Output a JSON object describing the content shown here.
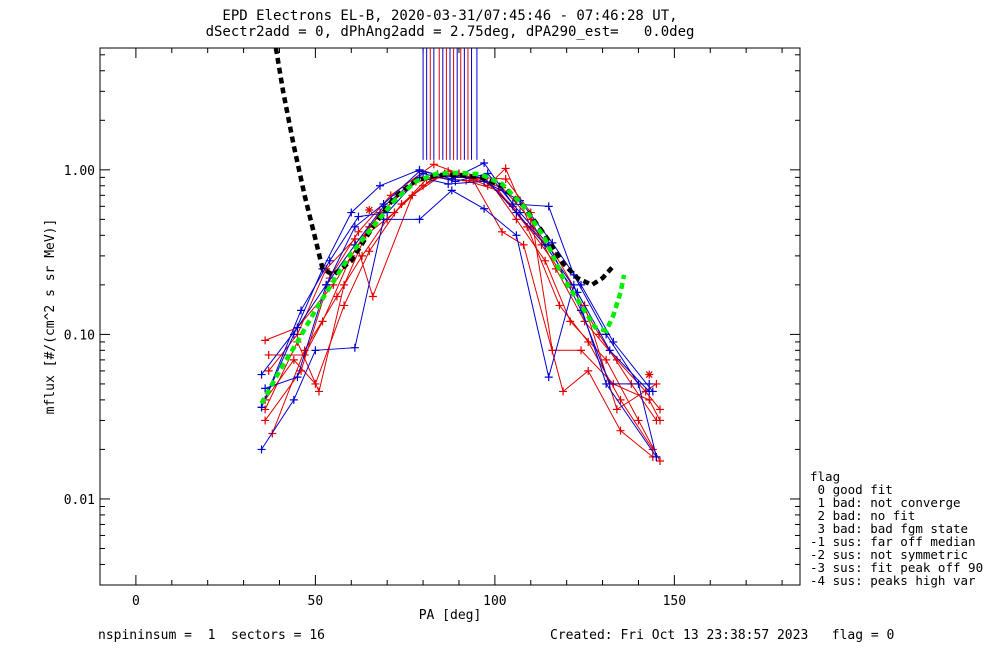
{
  "title_line1": "EPD Electrons EL-B, 2020-03-31/07:45:46 - 07:46:28 UT,",
  "title_line2": "dSectr2add = 0, dPhAng2add = 2.75deg, dPA290_est=   0.0deg",
  "footer_left": "nspininsum =  1  sectors = 16",
  "footer_right": "Created: Fri Oct 13 23:38:57 2023   flag = 0",
  "legend": {
    "title": "flag",
    "items": [
      " 0 good fit",
      " 1 bad: not converge",
      " 2 bad: no fit",
      " 3 bad: bad fgm state",
      "-1 sus: far off median",
      "-2 sus: not symmetric",
      "-3 sus: fit peak off 90",
      "-4 sus: peaks high var"
    ]
  },
  "colors": {
    "red": "#e00000",
    "blue": "#0000cc",
    "black": "#000000",
    "green": "#00ee00"
  },
  "chart_data": {
    "type": "line",
    "xlabel": "PA [deg]",
    "ylabel": "mflux [#/(cm^2 s sr MeV)]",
    "xlim": [
      -10,
      185
    ],
    "ylim": [
      0.003,
      5.5
    ],
    "y_log": true,
    "x_ticks": [
      0,
      50,
      100,
      150
    ],
    "x_tick_labels": [
      "0",
      "50",
      "100",
      "150"
    ],
    "y_ticks": [
      0.01,
      0.1,
      1.0
    ],
    "y_tick_labels": [
      "0.01",
      "0.10",
      "1.00"
    ],
    "series": [
      {
        "color": "red",
        "marker": "+",
        "points": [
          [
            36,
            0.092
          ],
          [
            45,
            0.11
          ],
          [
            55,
            0.2
          ],
          [
            65,
            0.45
          ],
          [
            75,
            0.78
          ],
          [
            84,
            0.94
          ],
          [
            93,
            0.9
          ],
          [
            102,
            0.78
          ],
          [
            110,
            0.5
          ],
          [
            117,
            0.25
          ],
          [
            125,
            0.12
          ],
          [
            134,
            0.07
          ],
          [
            142,
            0.045
          ],
          [
            146,
            0.035
          ]
        ]
      },
      {
        "color": "red",
        "marker": "+",
        "points": [
          [
            37,
            0.075
          ],
          [
            47,
            0.075
          ],
          [
            52,
            0.12
          ],
          [
            60,
            0.3
          ],
          [
            68,
            0.55
          ],
          [
            78,
            0.85
          ],
          [
            88,
            0.92
          ],
          [
            97,
            0.88
          ],
          [
            105,
            0.6
          ],
          [
            113,
            0.35
          ],
          [
            121,
            0.2
          ],
          [
            129,
            0.1
          ],
          [
            138,
            0.05
          ],
          [
            145,
            0.03
          ]
        ]
      },
      {
        "color": "red",
        "marker": "+",
        "points": [
          [
            36,
            0.04
          ],
          [
            44,
            0.07
          ],
          [
            50,
            0.05
          ],
          [
            58,
            0.15
          ],
          [
            65,
            0.32
          ],
          [
            74,
            0.62
          ],
          [
            83,
            0.9
          ],
          [
            92,
            0.86
          ],
          [
            101,
            0.75
          ],
          [
            109,
            0.45
          ],
          [
            118,
            0.15
          ],
          [
            126,
            0.09
          ],
          [
            135,
            0.04
          ],
          [
            144,
            0.02
          ]
        ]
      },
      {
        "color": "red",
        "marker": "+",
        "points": [
          [
            36,
            0.035
          ],
          [
            45,
            0.09
          ],
          [
            51,
            0.045
          ],
          [
            58,
            0.2
          ],
          [
            64,
            0.4
          ],
          [
            72,
            0.55
          ],
          [
            81,
            0.88
          ],
          [
            90,
            0.95
          ],
          [
            99,
            0.82
          ],
          [
            106,
            0.5
          ],
          [
            114,
            0.28
          ],
          [
            121,
            0.12
          ],
          [
            131,
            0.07
          ],
          [
            140,
            0.03
          ],
          [
            146,
            0.017
          ]
        ]
      },
      {
        "color": "red",
        "marker": "+",
        "points": [
          [
            37,
            0.06
          ],
          [
            45,
            0.1
          ],
          [
            53,
            0.25
          ],
          [
            61,
            0.38
          ],
          [
            66,
            0.17
          ],
          [
            77,
            0.7
          ],
          [
            86,
            0.95
          ],
          [
            95,
            0.9
          ],
          [
            103,
            0.88
          ],
          [
            110,
            0.55
          ],
          [
            116,
            0.08
          ],
          [
            124,
            0.08
          ],
          [
            133,
            0.05
          ],
          [
            143,
            0.04
          ],
          [
            146,
            0.03
          ]
        ]
      },
      {
        "color": "red",
        "marker": "+",
        "points": [
          [
            38,
            0.025
          ],
          [
            47,
            0.08
          ],
          [
            56,
            0.17
          ],
          [
            63,
            0.3
          ],
          [
            70,
            0.5
          ],
          [
            80,
            0.8
          ],
          [
            87,
            0.98
          ],
          [
            94,
            0.86
          ],
          [
            102,
            0.42
          ],
          [
            108,
            0.35
          ],
          [
            119,
            0.045
          ],
          [
            126,
            0.06
          ],
          [
            135,
            0.026
          ],
          [
            144,
            0.018
          ]
        ]
      },
      {
        "color": "red",
        "marker": "+",
        "points": [
          [
            36,
            0.03
          ],
          [
            46,
            0.06
          ],
          [
            54,
            0.22
          ],
          [
            62,
            0.42
          ],
          [
            71,
            0.7
          ],
          [
            83,
            1.08
          ],
          [
            90,
            0.95
          ],
          [
            98,
            0.8
          ],
          [
            103,
            1.02
          ],
          [
            110,
            0.45
          ],
          [
            117,
            0.3
          ],
          [
            125,
            0.15
          ],
          [
            134,
            0.035
          ],
          [
            145,
            0.05
          ]
        ]
      },
      {
        "color": "blue",
        "marker": "+",
        "points": [
          [
            35,
            0.036
          ],
          [
            44,
            0.1
          ],
          [
            52,
            0.25
          ],
          [
            60,
            0.55
          ],
          [
            68,
            0.8
          ],
          [
            79,
            1.0
          ],
          [
            88,
            0.88
          ],
          [
            97,
            1.1
          ],
          [
            105,
            0.62
          ],
          [
            115,
            0.6
          ],
          [
            122,
            0.23
          ],
          [
            131,
            0.1
          ],
          [
            140,
            0.05
          ],
          [
            145,
            0.018
          ]
        ]
      },
      {
        "color": "blue",
        "marker": "+",
        "points": [
          [
            35,
            0.057
          ],
          [
            45,
            0.11
          ],
          [
            53,
            0.2
          ],
          [
            61,
            0.45
          ],
          [
            69,
            0.62
          ],
          [
            79,
            0.98
          ],
          [
            89,
            0.9
          ],
          [
            97,
            0.9
          ],
          [
            106,
            0.55
          ],
          [
            114,
            0.35
          ],
          [
            123,
            0.18
          ],
          [
            132,
            0.08
          ],
          [
            143,
            0.045
          ]
        ]
      },
      {
        "color": "blue",
        "marker": "+",
        "points": [
          [
            35,
            0.02
          ],
          [
            44,
            0.04
          ],
          [
            50,
            0.08
          ],
          [
            61,
            0.083
          ],
          [
            69,
            0.5
          ],
          [
            79,
            0.5
          ],
          [
            88,
            0.75
          ],
          [
            97,
            0.58
          ],
          [
            106,
            0.4
          ],
          [
            115,
            0.055
          ],
          [
            122,
            0.2
          ],
          [
            131,
            0.05
          ],
          [
            145,
            0.018
          ]
        ]
      },
      {
        "color": "blue",
        "marker": "+",
        "points": [
          [
            36,
            0.047
          ],
          [
            45,
            0.055
          ],
          [
            53,
            0.2
          ],
          [
            61,
            0.35
          ],
          [
            69,
            0.6
          ],
          [
            80,
            0.95
          ],
          [
            89,
            0.85
          ],
          [
            98,
            0.95
          ],
          [
            107,
            0.55
          ],
          [
            115,
            0.35
          ],
          [
            124,
            0.14
          ],
          [
            132,
            0.05
          ],
          [
            143,
            0.05
          ]
        ]
      },
      {
        "color": "blue",
        "marker": "+",
        "points": [
          [
            35,
            0.036
          ],
          [
            46,
            0.14
          ],
          [
            54,
            0.28
          ],
          [
            62,
            0.52
          ],
          [
            70,
            0.55
          ],
          [
            79,
            0.9
          ],
          [
            87,
            0.82
          ],
          [
            97,
            0.85
          ],
          [
            107,
            0.65
          ],
          [
            116,
            0.36
          ],
          [
            124,
            0.2
          ],
          [
            133,
            0.09
          ],
          [
            144,
            0.045
          ]
        ]
      }
    ],
    "median_curve": {
      "color": "black",
      "style": "dashed",
      "points": [
        [
          39,
          5.5
        ],
        [
          41,
          3.0
        ],
        [
          44,
          1.4
        ],
        [
          47,
          0.7
        ],
        [
          50,
          0.38
        ],
        [
          52,
          0.25
        ],
        [
          55,
          0.23
        ],
        [
          60,
          0.28
        ],
        [
          66,
          0.45
        ],
        [
          72,
          0.68
        ],
        [
          78,
          0.86
        ],
        [
          84,
          0.93
        ],
        [
          90,
          0.93
        ],
        [
          96,
          0.9
        ],
        [
          102,
          0.8
        ],
        [
          108,
          0.6
        ],
        [
          114,
          0.4
        ],
        [
          119,
          0.27
        ],
        [
          123,
          0.22
        ],
        [
          127,
          0.2
        ],
        [
          130,
          0.22
        ],
        [
          133,
          0.26
        ]
      ]
    },
    "fit_curve": {
      "color": "green",
      "style": "dashed",
      "points": [
        [
          35,
          0.038
        ],
        [
          40,
          0.06
        ],
        [
          45,
          0.09
        ],
        [
          50,
          0.14
        ],
        [
          55,
          0.21
        ],
        [
          60,
          0.31
        ],
        [
          66,
          0.45
        ],
        [
          72,
          0.65
        ],
        [
          78,
          0.85
        ],
        [
          84,
          0.95
        ],
        [
          90,
          0.96
        ],
        [
          96,
          0.94
        ],
        [
          102,
          0.82
        ],
        [
          108,
          0.6
        ],
        [
          114,
          0.38
        ],
        [
          119,
          0.22
        ],
        [
          124,
          0.15
        ],
        [
          128,
          0.11
        ],
        [
          131,
          0.105
        ],
        [
          133,
          0.13
        ],
        [
          135,
          0.18
        ],
        [
          136,
          0.23
        ]
      ]
    },
    "peak_markers": [
      {
        "x": 80,
        "color": "blue"
      },
      {
        "x": 81,
        "color": "blue"
      },
      {
        "x": 82,
        "color": "red"
      },
      {
        "x": 83,
        "color": "blue"
      },
      {
        "x": 84.5,
        "color": "red"
      },
      {
        "x": 85.5,
        "color": "blue"
      },
      {
        "x": 86.5,
        "color": "red"
      },
      {
        "x": 87.5,
        "color": "blue"
      },
      {
        "x": 88.5,
        "color": "red"
      },
      {
        "x": 89.5,
        "color": "blue"
      },
      {
        "x": 90.5,
        "color": "red"
      },
      {
        "x": 91.5,
        "color": "blue"
      },
      {
        "x": 92.5,
        "color": "red"
      },
      {
        "x": 93.5,
        "color": "blue"
      },
      {
        "x": 95,
        "color": "blue"
      }
    ],
    "peak_marker_ymin": 1.15,
    "asterisks": [
      {
        "x": 65,
        "y": 0.57,
        "color": "red"
      },
      {
        "x": 143,
        "y": 0.057,
        "color": "red"
      }
    ]
  }
}
